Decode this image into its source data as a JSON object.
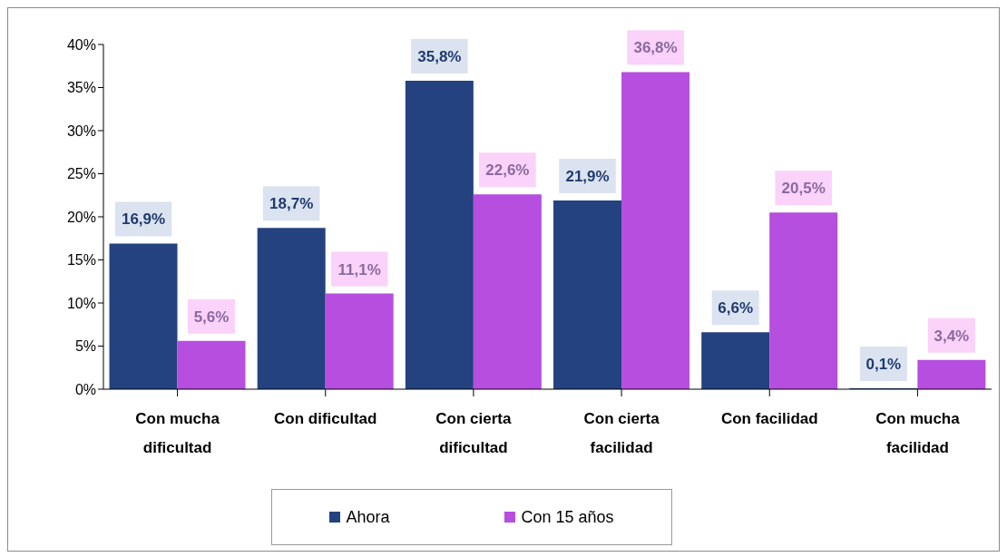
{
  "chart_data": {
    "type": "bar",
    "categories": [
      "Con mucha dificultad",
      "Con dificultad",
      "Con cierta dificultad",
      "Con cierta facilidad",
      "Con facilidad",
      "Con mucha facilidad"
    ],
    "series": [
      {
        "name": "Ahora",
        "color": "#23427f",
        "values": [
          16.9,
          18.7,
          35.8,
          21.9,
          6.6,
          0.1
        ],
        "value_labels": [
          "16,9%",
          "18,7%",
          "35,8%",
          "21,9%",
          "6,6%",
          "0,1%"
        ]
      },
      {
        "name": "Con 15 años",
        "color": "#b64ee0",
        "values": [
          5.6,
          11.1,
          22.6,
          36.8,
          20.5,
          3.4
        ],
        "value_labels": [
          "5,6%",
          "11,1%",
          "22,6%",
          "36,8%",
          "20,5%",
          "3,4%"
        ]
      }
    ],
    "ylim": [
      0,
      40
    ],
    "yticks": [
      {
        "value": 0,
        "label": "0%"
      },
      {
        "value": 5,
        "label": "5%"
      },
      {
        "value": 10,
        "label": "10%"
      },
      {
        "value": 15,
        "label": "15%"
      },
      {
        "value": 20,
        "label": "20%"
      },
      {
        "value": 25,
        "label": "25%"
      },
      {
        "value": 30,
        "label": "30%"
      },
      {
        "value": 35,
        "label": "35%"
      },
      {
        "value": 40,
        "label": "40%"
      }
    ],
    "grid": false,
    "legend": "bottom"
  }
}
